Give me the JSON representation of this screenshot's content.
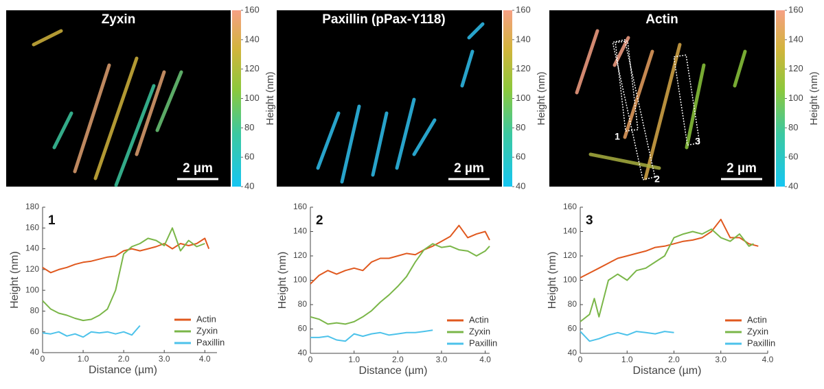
{
  "images": [
    {
      "title": "Zyxin",
      "scale_bar": "2 µm",
      "colorbar": {
        "label": "Height (nm)",
        "clim": [
          40,
          160
        ],
        "ticks": [
          40,
          60,
          80,
          100,
          120,
          140,
          160
        ]
      }
    },
    {
      "title": "Paxillin (pPax-Y118)",
      "scale_bar": "2 µm",
      "colorbar": {
        "label": "Height (nm)",
        "clim": [
          40,
          160
        ],
        "ticks": [
          40,
          60,
          80,
          100,
          120,
          140,
          160
        ]
      }
    },
    {
      "title": "Actin",
      "scale_bar": "2 µm",
      "colorbar": {
        "label": "Height (nm)",
        "clim": [
          40,
          160
        ],
        "ticks": [
          40,
          60,
          80,
          100,
          120,
          140,
          160
        ]
      },
      "roi_labels": [
        "1",
        "2",
        "3"
      ]
    }
  ],
  "chart_data": [
    {
      "type": "line",
      "panel_label": "1",
      "xlabel": "Distance (µm)",
      "ylabel": "Height (nm)",
      "xlim": [
        0,
        4.3
      ],
      "ylim": [
        40,
        180
      ],
      "xticks": [
        0,
        {
          "value": 1,
          "label": "1.0"
        },
        {
          "value": 2,
          "label": "2.0"
        },
        {
          "value": 3,
          "label": "3.0"
        },
        {
          "value": 4,
          "label": "4.0"
        }
      ],
      "yticks": [
        40,
        60,
        80,
        100,
        120,
        140,
        160,
        180
      ],
      "series": [
        {
          "name": "Actin",
          "color": "#e0581e",
          "x": [
            0,
            0.2,
            0.4,
            0.6,
            0.8,
            1.0,
            1.2,
            1.4,
            1.6,
            1.8,
            2.0,
            2.2,
            2.4,
            2.6,
            2.8,
            3.0,
            3.2,
            3.4,
            3.6,
            3.8,
            4.0,
            4.1
          ],
          "values": [
            122,
            117,
            120,
            122,
            125,
            127,
            128,
            130,
            132,
            133,
            138,
            140,
            138,
            140,
            142,
            145,
            140,
            145,
            143,
            145,
            150,
            140
          ]
        },
        {
          "name": "Zyxin",
          "color": "#7ab648",
          "x": [
            0,
            0.2,
            0.4,
            0.6,
            0.8,
            1.0,
            1.2,
            1.4,
            1.6,
            1.8,
            2.0,
            2.2,
            2.4,
            2.6,
            2.8,
            3.0,
            3.2,
            3.4,
            3.6,
            3.8,
            4.0
          ],
          "values": [
            90,
            82,
            78,
            76,
            73,
            71,
            72,
            76,
            82,
            100,
            135,
            142,
            145,
            150,
            148,
            143,
            160,
            138,
            148,
            142,
            145
          ]
        },
        {
          "name": "Paxillin",
          "color": "#4cc2ea",
          "x": [
            0,
            0.2,
            0.4,
            0.6,
            0.8,
            1.0,
            1.2,
            1.4,
            1.6,
            1.8,
            2.0,
            2.2,
            2.4
          ],
          "values": [
            59,
            58,
            60,
            56,
            58,
            55,
            60,
            59,
            60,
            58,
            60,
            57,
            66
          ]
        }
      ]
    },
    {
      "type": "line",
      "panel_label": "2",
      "xlabel": "Distance (µm)",
      "ylabel": "Height (nm)",
      "xlim": [
        0,
        4.1
      ],
      "ylim": [
        40,
        160
      ],
      "xticks": [
        0,
        {
          "value": 1,
          "label": "1.0"
        },
        {
          "value": 2,
          "label": "2.0"
        },
        {
          "value": 3,
          "label": "3.0"
        },
        {
          "value": 4,
          "label": "4.0"
        }
      ],
      "yticks": [
        40,
        60,
        80,
        100,
        120,
        140,
        160
      ],
      "series": [
        {
          "name": "Actin",
          "color": "#e0581e",
          "x": [
            0,
            0.2,
            0.4,
            0.6,
            0.8,
            1.0,
            1.2,
            1.4,
            1.6,
            1.8,
            2.0,
            2.2,
            2.4,
            2.6,
            2.8,
            3.0,
            3.2,
            3.4,
            3.6,
            3.8,
            4.0,
            4.1
          ],
          "values": [
            97,
            104,
            108,
            105,
            108,
            110,
            108,
            115,
            118,
            118,
            120,
            122,
            121,
            125,
            128,
            132,
            136,
            145,
            135,
            138,
            140,
            133
          ]
        },
        {
          "name": "Zyxin",
          "color": "#7ab648",
          "x": [
            0,
            0.2,
            0.4,
            0.6,
            0.8,
            1.0,
            1.2,
            1.4,
            1.6,
            1.8,
            2.0,
            2.2,
            2.4,
            2.6,
            2.8,
            3.0,
            3.2,
            3.4,
            3.6,
            3.8,
            4.0,
            4.1
          ],
          "values": [
            70,
            68,
            64,
            65,
            64,
            66,
            70,
            75,
            82,
            88,
            95,
            103,
            115,
            125,
            130,
            127,
            128,
            125,
            124,
            120,
            124,
            128
          ]
        },
        {
          "name": "Paxillin",
          "color": "#4cc2ea",
          "x": [
            0,
            0.2,
            0.4,
            0.6,
            0.8,
            1.0,
            1.2,
            1.4,
            1.6,
            1.8,
            2.0,
            2.2,
            2.4,
            2.6,
            2.8
          ],
          "values": [
            53,
            53,
            54,
            51,
            50,
            56,
            54,
            56,
            57,
            55,
            56,
            57,
            57,
            58,
            59
          ]
        }
      ]
    },
    {
      "type": "line",
      "panel_label": "3",
      "xlabel": "Distance (µm)",
      "ylabel": "Height (nm)",
      "xlim": [
        0,
        4
      ],
      "ylim": [
        40,
        160
      ],
      "xticks": [
        0,
        {
          "value": 1,
          "label": "1.0"
        },
        {
          "value": 2,
          "label": "2.0"
        },
        {
          "value": 3,
          "label": "3.0"
        },
        {
          "value": 4,
          "label": "4.0"
        }
      ],
      "yticks": [
        40,
        60,
        80,
        100,
        120,
        140,
        160
      ],
      "series": [
        {
          "name": "Actin",
          "color": "#e0581e",
          "x": [
            0,
            0.2,
            0.4,
            0.6,
            0.8,
            1.0,
            1.2,
            1.4,
            1.6,
            1.8,
            2.0,
            2.2,
            2.4,
            2.6,
            2.8,
            3.0,
            3.2,
            3.4,
            3.6,
            3.8
          ],
          "values": [
            102,
            106,
            110,
            114,
            118,
            120,
            122,
            124,
            127,
            128,
            130,
            132,
            133,
            135,
            140,
            150,
            135,
            135,
            130,
            128
          ]
        },
        {
          "name": "Zyxin",
          "color": "#7ab648",
          "x": [
            0,
            0.2,
            0.3,
            0.4,
            0.6,
            0.8,
            1.0,
            1.2,
            1.4,
            1.6,
            1.8,
            2.0,
            2.2,
            2.4,
            2.6,
            2.8,
            3.0,
            3.2,
            3.4,
            3.6,
            3.7
          ],
          "values": [
            66,
            72,
            85,
            70,
            100,
            105,
            100,
            108,
            110,
            115,
            120,
            135,
            138,
            140,
            138,
            142,
            135,
            132,
            138,
            128,
            130
          ]
        },
        {
          "name": "Paxillin",
          "color": "#4cc2ea",
          "x": [
            0,
            0.2,
            0.4,
            0.6,
            0.8,
            1.0,
            1.2,
            1.4,
            1.6,
            1.8,
            2.0
          ],
          "values": [
            58,
            50,
            52,
            55,
            57,
            55,
            58,
            57,
            56,
            58,
            57
          ]
        }
      ]
    }
  ]
}
